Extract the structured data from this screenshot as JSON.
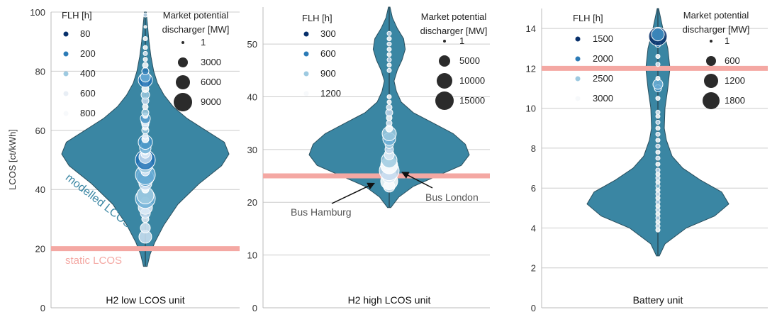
{
  "chart_data": [
    {
      "type": "violin",
      "title": "H2 low LCOS unit",
      "ylabel": "LCOS [ct/kWh]",
      "ylim": [
        0,
        100
      ],
      "yticks": [
        0,
        20,
        40,
        60,
        80,
        100
      ],
      "grid": true,
      "violin_color": "#3a86a3",
      "static_lcos": 20,
      "static_label": "static LCOS",
      "modelled_label": "modelled LCOS",
      "violin_min": 14,
      "violin_max": 100,
      "density": [
        [
          14,
          0.02
        ],
        [
          18,
          0.05
        ],
        [
          22,
          0.1
        ],
        [
          28,
          0.2
        ],
        [
          35,
          0.35
        ],
        [
          42,
          0.58
        ],
        [
          48,
          0.82
        ],
        [
          52,
          0.9
        ],
        [
          56,
          0.85
        ],
        [
          60,
          0.65
        ],
        [
          64,
          0.45
        ],
        [
          68,
          0.3
        ],
        [
          72,
          0.2
        ],
        [
          76,
          0.13
        ],
        [
          80,
          0.09
        ],
        [
          85,
          0.06
        ],
        [
          90,
          0.04
        ],
        [
          95,
          0.025
        ],
        [
          100,
          0.01
        ]
      ],
      "legend_flh": {
        "title": "FLH [h]",
        "values": [
          "80",
          "200",
          "400",
          "600",
          "800"
        ],
        "colors": [
          "#08306b",
          "#2c7bb6",
          "#9ecae1",
          "#e8eef5",
          "#f7f9fb"
        ]
      },
      "legend_size": {
        "title": "Market potential discharger [MW]",
        "values": [
          "1",
          "3000",
          "6000",
          "9000"
        ],
        "radii": [
          2,
          7,
          10,
          13
        ]
      },
      "points": [
        [
          24,
          9,
          "#cfe2f3"
        ],
        [
          27,
          7,
          "#dbe9f6"
        ],
        [
          30,
          5,
          "#e6eff8"
        ],
        [
          32,
          7,
          "#c6dbef"
        ],
        [
          34,
          10,
          "#deebf7"
        ],
        [
          36,
          6,
          "#ffffff"
        ],
        [
          37,
          14,
          "#6baed6"
        ],
        [
          38,
          12,
          "#9ecae1"
        ],
        [
          40,
          5,
          "#ffffff"
        ],
        [
          42,
          9,
          "#c6dbef"
        ],
        [
          44,
          12,
          "#4292c6"
        ],
        [
          45,
          14,
          "#6baed6"
        ],
        [
          46,
          6,
          "#deebf7"
        ],
        [
          48,
          10,
          "#9ecae1"
        ],
        [
          49,
          7,
          "#ffffff"
        ],
        [
          50,
          14,
          "#2171b5"
        ],
        [
          51,
          9,
          "#c6dbef"
        ],
        [
          52,
          6,
          "#deebf7"
        ],
        [
          53,
          5,
          "#ffffff"
        ],
        [
          54,
          8,
          "#6baed6"
        ],
        [
          55,
          6,
          "#9ecae1"
        ],
        [
          56,
          10,
          "#4292c6"
        ],
        [
          57,
          5,
          "#ffffff"
        ],
        [
          58,
          4,
          "#deebf7"
        ],
        [
          60,
          5,
          "#9ecae1"
        ],
        [
          61,
          4,
          "#ffffff"
        ],
        [
          62,
          5,
          "#c6dbef"
        ],
        [
          63,
          6,
          "#deebf7"
        ],
        [
          64,
          7,
          "#4292c6"
        ],
        [
          65,
          4,
          "#ffffff"
        ],
        [
          66,
          5,
          "#9ecae1"
        ],
        [
          68,
          4,
          "#ffffff"
        ],
        [
          70,
          5,
          "#c6dbef"
        ],
        [
          72,
          6,
          "#9ecae1"
        ],
        [
          74,
          5,
          "#ffffff"
        ],
        [
          76,
          4,
          "#deebf7"
        ],
        [
          77,
          10,
          "#2171b5"
        ],
        [
          78,
          7,
          "#6baed6"
        ],
        [
          80,
          5,
          "#2c7bb6"
        ],
        [
          82,
          4,
          "#ffffff"
        ],
        [
          84,
          3,
          "#ffffff"
        ],
        [
          86,
          3,
          "#deebf7"
        ],
        [
          88,
          3,
          "#ffffff"
        ],
        [
          91,
          3,
          "#ffffff"
        ],
        [
          95,
          2,
          "#ffffff"
        ],
        [
          99,
          3,
          "#c6dbef"
        ]
      ]
    },
    {
      "type": "violin",
      "title": "H2 high LCOS unit",
      "ylim": [
        0,
        57
      ],
      "yticks": [
        0,
        10,
        20,
        30,
        40,
        50
      ],
      "grid": true,
      "violin_color": "#3a86a3",
      "static_lcos": 25,
      "violin_min": 19,
      "violin_max": 57,
      "density": [
        [
          19,
          0.02
        ],
        [
          21,
          0.12
        ],
        [
          23,
          0.3
        ],
        [
          25,
          0.6
        ],
        [
          27,
          0.9
        ],
        [
          29,
          1.0
        ],
        [
          31,
          0.95
        ],
        [
          33,
          0.8
        ],
        [
          35,
          0.55
        ],
        [
          37,
          0.3
        ],
        [
          39,
          0.15
        ],
        [
          41,
          0.09
        ],
        [
          43,
          0.06
        ],
        [
          45,
          0.1
        ],
        [
          47,
          0.16
        ],
        [
          49,
          0.2
        ],
        [
          51,
          0.18
        ],
        [
          53,
          0.1
        ],
        [
          55,
          0.04
        ],
        [
          57,
          0.01
        ]
      ],
      "legend_flh": {
        "title": "FLH [h]",
        "values": [
          "300",
          "600",
          "900",
          "1200"
        ],
        "colors": [
          "#08306b",
          "#2c7bb6",
          "#9ecae1",
          "#f7f9fb"
        ]
      },
      "legend_size": {
        "title": "Market potential discharger [MW]",
        "values": [
          "1",
          "5000",
          "10000",
          "15000"
        ],
        "radii": [
          2,
          8,
          11,
          13
        ]
      },
      "annotations": [
        {
          "text": "Bus Hamburg",
          "x": 24,
          "y": 23.6
        },
        {
          "text": "Bus London",
          "x": 27.5,
          "y": 25.7
        }
      ],
      "points": [
        [
          23,
          8,
          "#deebf7"
        ],
        [
          24,
          12,
          "#ffffff"
        ],
        [
          25,
          10,
          "#deebf7"
        ],
        [
          26,
          14,
          "#c6dbef"
        ],
        [
          27,
          12,
          "#ffffff"
        ],
        [
          28,
          11,
          "#9ecae1"
        ],
        [
          29,
          7,
          "#deebf7"
        ],
        [
          30,
          6,
          "#c6dbef"
        ],
        [
          31,
          6,
          "#9ecae1"
        ],
        [
          32,
          9,
          "#6baed6"
        ],
        [
          33,
          10,
          "#9ecae1"
        ],
        [
          34,
          5,
          "#ffffff"
        ],
        [
          35,
          4,
          "#deebf7"
        ],
        [
          36,
          4,
          "#ffffff"
        ],
        [
          37,
          5,
          "#c6dbef"
        ],
        [
          38,
          4,
          "#deebf7"
        ],
        [
          39,
          3,
          "#ffffff"
        ],
        [
          40,
          3,
          "#ffffff"
        ],
        [
          45,
          3,
          "#deebf7"
        ],
        [
          46,
          3,
          "#ffffff"
        ],
        [
          47,
          3,
          "#c6dbef"
        ],
        [
          48,
          3,
          "#ffffff"
        ],
        [
          49,
          3,
          "#ffffff"
        ],
        [
          50,
          3,
          "#deebf7"
        ],
        [
          51,
          3,
          "#ffffff"
        ],
        [
          52,
          3,
          "#c6dbef"
        ]
      ]
    },
    {
      "type": "violin",
      "title": "Battery unit",
      "ylim": [
        0,
        15
      ],
      "yticks": [
        0,
        2,
        4,
        6,
        8,
        10,
        12,
        14
      ],
      "grid": true,
      "violin_color": "#3a86a3",
      "static_lcos": 12,
      "violin_min": 2.6,
      "violin_max": 15,
      "density": [
        [
          2.6,
          0.02
        ],
        [
          3.2,
          0.1
        ],
        [
          4,
          0.4
        ],
        [
          4.6,
          0.8
        ],
        [
          5.2,
          1.0
        ],
        [
          5.8,
          0.9
        ],
        [
          6.4,
          0.6
        ],
        [
          7,
          0.35
        ],
        [
          7.6,
          0.2
        ],
        [
          8.4,
          0.12
        ],
        [
          9,
          0.09
        ],
        [
          10,
          0.1
        ],
        [
          11,
          0.14
        ],
        [
          12,
          0.17
        ],
        [
          13,
          0.14
        ],
        [
          14,
          0.07
        ],
        [
          15,
          0.01
        ]
      ],
      "legend_flh": {
        "title": "FLH [h]",
        "values": [
          "1500",
          "2000",
          "2500",
          "3000"
        ],
        "colors": [
          "#08306b",
          "#2c7bb6",
          "#9ecae1",
          "#f7f9fb"
        ]
      },
      "legend_size": {
        "title": "Market potential discharger [MW]",
        "values": [
          "1",
          "600",
          "1200",
          "1800"
        ],
        "radii": [
          2,
          7,
          10,
          12
        ]
      },
      "points": [
        [
          3.9,
          3,
          "#ffffff"
        ],
        [
          4.1,
          3,
          "#deebf7"
        ],
        [
          4.3,
          3,
          "#ffffff"
        ],
        [
          4.5,
          3,
          "#c6dbef"
        ],
        [
          4.7,
          3,
          "#ffffff"
        ],
        [
          4.9,
          3,
          "#deebf7"
        ],
        [
          5.1,
          3,
          "#ffffff"
        ],
        [
          5.3,
          3,
          "#c6dbef"
        ],
        [
          5.5,
          3,
          "#ffffff"
        ],
        [
          5.7,
          3,
          "#deebf7"
        ],
        [
          5.9,
          3,
          "#ffffff"
        ],
        [
          6.1,
          3,
          "#9ecae1"
        ],
        [
          6.3,
          3,
          "#ffffff"
        ],
        [
          6.5,
          3,
          "#deebf7"
        ],
        [
          6.7,
          3,
          "#ffffff"
        ],
        [
          6.9,
          3,
          "#c6dbef"
        ],
        [
          7.2,
          3,
          "#ffffff"
        ],
        [
          7.5,
          3,
          "#deebf7"
        ],
        [
          7.8,
          3,
          "#ffffff"
        ],
        [
          8.1,
          3,
          "#c6dbef"
        ],
        [
          8.4,
          3,
          "#ffffff"
        ],
        [
          8.7,
          3,
          "#deebf7"
        ],
        [
          9,
          3,
          "#ffffff"
        ],
        [
          9.3,
          3,
          "#c6dbef"
        ],
        [
          9.6,
          3,
          "#ffffff"
        ],
        [
          9.8,
          3,
          "#deebf7"
        ],
        [
          10.5,
          3,
          "#ffffff"
        ],
        [
          11,
          5,
          "#4292c6"
        ],
        [
          11.2,
          7,
          "#6baed6"
        ],
        [
          11.5,
          3,
          "#ffffff"
        ],
        [
          12.2,
          3,
          "#deebf7"
        ],
        [
          12.6,
          3,
          "#ffffff"
        ],
        [
          13.2,
          4,
          "#2c7bb6"
        ],
        [
          13.6,
          13,
          "#08306b"
        ],
        [
          13.7,
          9,
          "#4292c6"
        ]
      ]
    }
  ]
}
